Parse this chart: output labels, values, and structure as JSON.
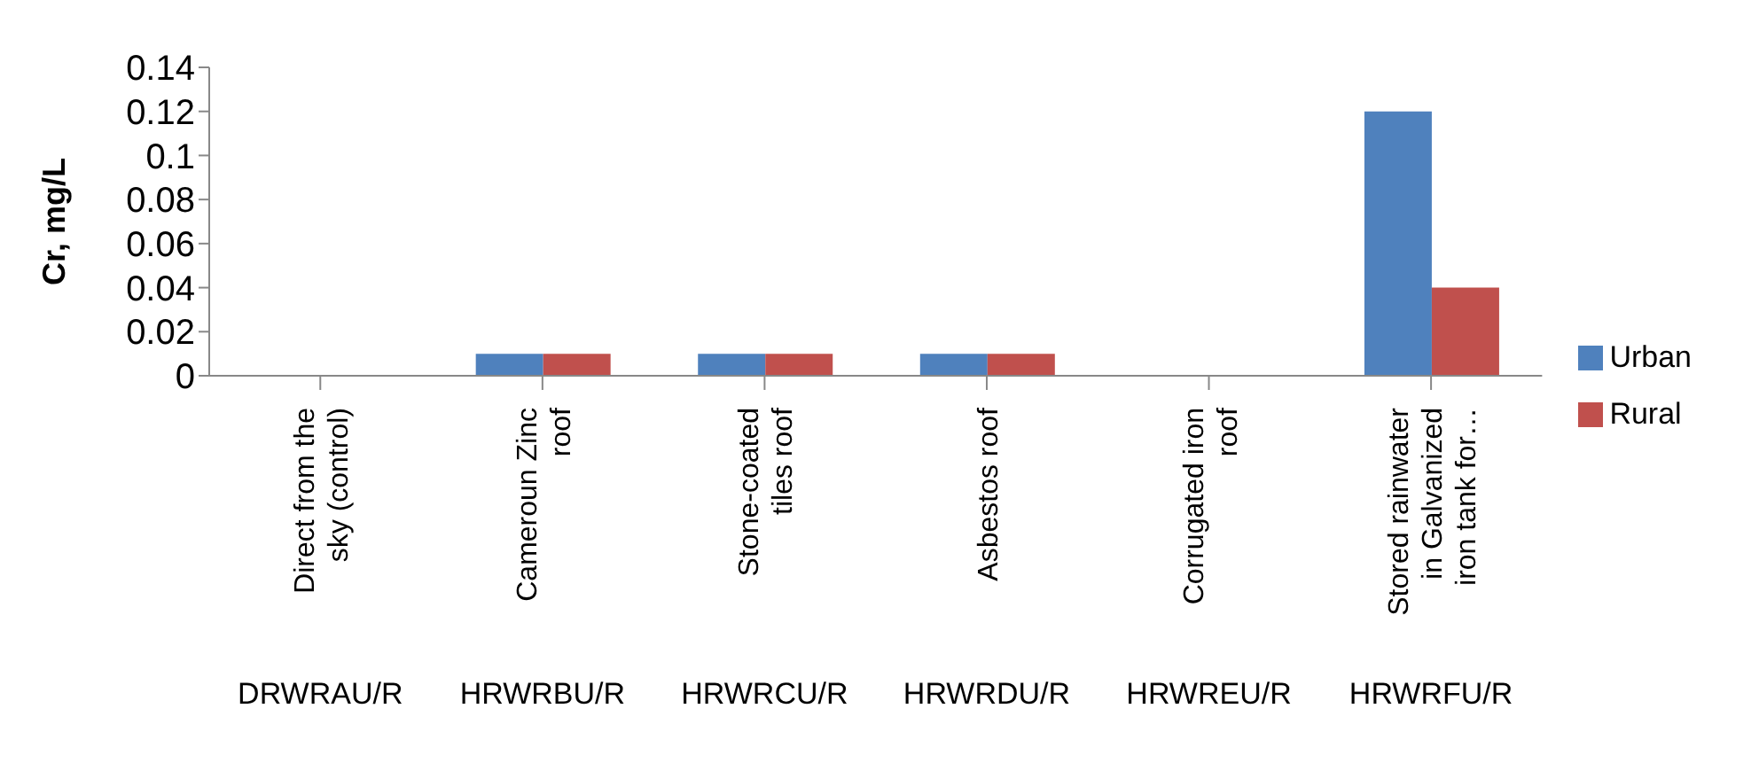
{
  "chart_data": {
    "type": "bar",
    "ylabel": "Cr, mg/L",
    "categories": [
      "Direct from the sky (control)",
      "Cameroun Zinc roof",
      "Stone-coated tiles roof",
      "Asbestos roof",
      "Corrugated iron roof",
      "Stored rainwater in Galvanized iron tank for…"
    ],
    "series": [
      {
        "name": "Urban",
        "color": "#4f81bd",
        "values": [
          0,
          0.01,
          0.01,
          0.01,
          0,
          0.12
        ]
      },
      {
        "name": "Rural",
        "color": "#c0504d",
        "values": [
          0,
          0.01,
          0.01,
          0.01,
          0,
          0.04
        ]
      }
    ],
    "ylim": [
      0,
      0.14
    ],
    "yticks": [
      0,
      0.02,
      0.04,
      0.06,
      0.08,
      0.1,
      0.12,
      0.14
    ],
    "grid": false,
    "legend": "right",
    "annotations": [
      "DRWRAU/R",
      "HRWRBU/R",
      "HRWRCU/R",
      "HRWRDU/R",
      "HRWREU/R",
      "HRWRFU/R"
    ]
  }
}
